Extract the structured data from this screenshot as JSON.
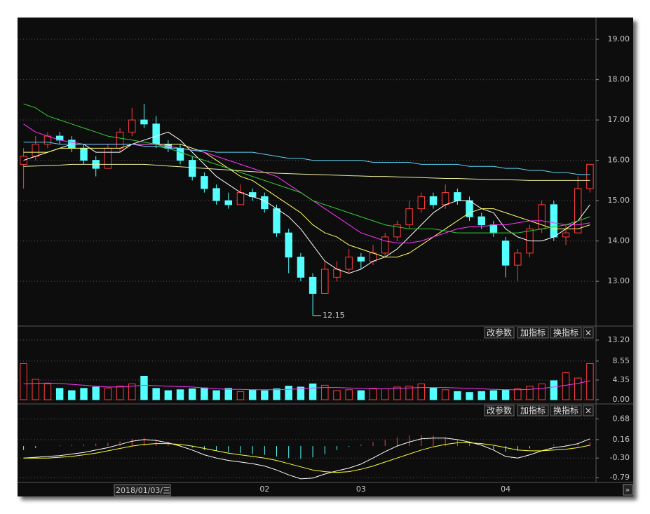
{
  "chart_data": [
    {
      "type": "candlestick",
      "categories": [
        null,
        null,
        null,
        null,
        null,
        null,
        null,
        null,
        null,
        null,
        null,
        null,
        null,
        null,
        null,
        null,
        null,
        null,
        null,
        null,
        "02",
        null,
        null,
        null,
        null,
        null,
        null,
        null,
        "03",
        null,
        null,
        null,
        null,
        null,
        null,
        null,
        null,
        null,
        null,
        null,
        "04",
        null,
        null,
        null,
        null,
        null,
        null,
        null
      ],
      "ohlc": [
        [
          15.9,
          16.3,
          15.3,
          16.1
        ],
        [
          16.1,
          16.6,
          16.0,
          16.4
        ],
        [
          16.4,
          16.7,
          16.3,
          16.6
        ],
        [
          16.6,
          16.7,
          16.4,
          16.5
        ],
        [
          16.5,
          16.6,
          16.2,
          16.3
        ],
        [
          16.3,
          16.4,
          15.9,
          16.0
        ],
        [
          16.0,
          16.1,
          15.6,
          15.8
        ],
        [
          15.8,
          16.4,
          15.8,
          16.3
        ],
        [
          16.3,
          16.8,
          16.2,
          16.7
        ],
        [
          16.7,
          17.3,
          16.6,
          17.0
        ],
        [
          17.0,
          17.4,
          16.8,
          16.9
        ],
        [
          16.9,
          17.1,
          16.3,
          16.4
        ],
        [
          16.4,
          16.5,
          16.2,
          16.3
        ],
        [
          16.3,
          16.4,
          15.9,
          16.0
        ],
        [
          16.0,
          16.1,
          15.5,
          15.6
        ],
        [
          15.6,
          15.7,
          15.2,
          15.3
        ],
        [
          15.3,
          15.4,
          14.9,
          15.0
        ],
        [
          15.0,
          15.2,
          14.8,
          14.9
        ],
        [
          14.9,
          15.4,
          14.9,
          15.2
        ],
        [
          15.2,
          15.3,
          15.0,
          15.1
        ],
        [
          15.1,
          15.2,
          14.7,
          14.8
        ],
        [
          14.8,
          14.9,
          14.1,
          14.2
        ],
        [
          14.2,
          14.3,
          13.2,
          13.6
        ],
        [
          13.6,
          13.7,
          13.0,
          13.1
        ],
        [
          13.1,
          13.2,
          12.15,
          12.7
        ],
        [
          12.7,
          13.5,
          12.7,
          13.3
        ],
        [
          13.1,
          13.5,
          13.0,
          13.3
        ],
        [
          13.3,
          13.8,
          13.2,
          13.6
        ],
        [
          13.6,
          13.7,
          13.3,
          13.5
        ],
        [
          13.5,
          13.9,
          13.4,
          13.7
        ],
        [
          13.7,
          14.2,
          13.6,
          14.1
        ],
        [
          14.1,
          14.5,
          14.0,
          14.4
        ],
        [
          14.4,
          15.0,
          14.3,
          14.8
        ],
        [
          14.8,
          15.2,
          14.7,
          15.1
        ],
        [
          15.1,
          15.2,
          14.8,
          14.9
        ],
        [
          14.9,
          15.4,
          14.8,
          15.2
        ],
        [
          15.2,
          15.3,
          14.9,
          15.0
        ],
        [
          15.0,
          15.1,
          14.5,
          14.6
        ],
        [
          14.6,
          14.7,
          14.3,
          14.4
        ],
        [
          14.4,
          14.5,
          14.1,
          14.2
        ],
        [
          14.0,
          14.1,
          13.1,
          13.4
        ],
        [
          13.4,
          13.8,
          13.0,
          13.7
        ],
        [
          13.7,
          14.4,
          13.6,
          14.3
        ],
        [
          14.3,
          15.0,
          14.2,
          14.9
        ],
        [
          14.9,
          15.0,
          14.0,
          14.1
        ],
        [
          14.1,
          14.4,
          13.9,
          14.2
        ],
        [
          14.2,
          15.6,
          14.2,
          15.3
        ],
        [
          15.3,
          15.9,
          15.2,
          15.9
        ]
      ],
      "up_color": "#ff3c3c",
      "down_color": "#54ffff",
      "series": [
        {
          "color": "#ffffff",
          "values": [
            16.0,
            16.1,
            16.2,
            16.3,
            16.4,
            16.4,
            16.2,
            16.2,
            16.2,
            16.4,
            16.5,
            16.6,
            16.7,
            16.5,
            16.2,
            15.9,
            15.6,
            15.4,
            15.2,
            15.1,
            15.0,
            14.8,
            14.6,
            14.3,
            13.9,
            13.5,
            13.3,
            13.2,
            13.3,
            13.5,
            13.6,
            13.8,
            14.1,
            14.4,
            14.7,
            14.9,
            15.0,
            15.0,
            14.8,
            14.7,
            14.3,
            14.1,
            14.0,
            14.0,
            14.1,
            14.3,
            14.5,
            14.9
          ]
        },
        {
          "color": "#ffff66",
          "values": [
            16.2,
            16.2,
            16.2,
            16.3,
            16.3,
            16.3,
            16.3,
            16.3,
            16.3,
            16.4,
            16.4,
            16.4,
            16.4,
            16.4,
            16.3,
            16.2,
            16.0,
            15.8,
            15.6,
            15.5,
            15.3,
            15.1,
            14.9,
            14.7,
            14.4,
            14.2,
            14.1,
            13.9,
            13.8,
            13.7,
            13.6,
            13.6,
            13.7,
            13.9,
            14.1,
            14.3,
            14.5,
            14.7,
            14.8,
            14.8,
            14.7,
            14.6,
            14.5,
            14.4,
            14.3,
            14.3,
            14.3,
            14.4
          ]
        },
        {
          "color": "#ff33ff",
          "values": [
            16.9,
            16.7,
            16.6,
            16.5,
            16.45,
            16.4,
            16.4,
            16.4,
            16.4,
            16.4,
            16.4,
            16.4,
            16.35,
            16.3,
            16.25,
            16.2,
            16.1,
            16.0,
            15.9,
            15.8,
            15.7,
            15.6,
            15.4,
            15.2,
            15.0,
            14.8,
            14.6,
            14.4,
            14.2,
            14.1,
            14.0,
            13.95,
            13.95,
            14.0,
            14.1,
            14.2,
            14.3,
            14.35,
            14.35,
            14.4,
            14.4,
            14.45,
            14.5,
            14.5,
            14.45,
            14.4,
            14.4,
            14.45
          ]
        },
        {
          "color": "#33cc33",
          "values": [
            17.4,
            17.3,
            17.1,
            17.0,
            16.9,
            16.8,
            16.7,
            16.6,
            16.55,
            16.5,
            16.45,
            16.4,
            16.3,
            16.2,
            16.1,
            16.0,
            15.9,
            15.8,
            15.7,
            15.6,
            15.5,
            15.4,
            15.3,
            15.2,
            15.0,
            14.9,
            14.8,
            14.7,
            14.6,
            14.5,
            14.4,
            14.35,
            14.3,
            14.3,
            14.3,
            14.25,
            14.2,
            14.2,
            14.2,
            14.2,
            14.2,
            14.2,
            14.25,
            14.3,
            14.35,
            14.4,
            14.5,
            14.6
          ]
        },
        {
          "color": "#5ad2f0",
          "values": [
            16.45,
            16.45,
            16.45,
            16.4,
            16.4,
            16.4,
            16.4,
            16.4,
            16.4,
            16.4,
            16.35,
            16.35,
            16.3,
            16.3,
            16.25,
            16.25,
            16.2,
            16.2,
            16.2,
            16.2,
            16.15,
            16.1,
            16.05,
            16.05,
            16.0,
            16.0,
            16.0,
            16.0,
            16.0,
            15.95,
            15.95,
            15.95,
            15.95,
            15.9,
            15.9,
            15.9,
            15.9,
            15.85,
            15.85,
            15.85,
            15.8,
            15.8,
            15.75,
            15.75,
            15.7,
            15.7,
            15.65,
            15.65
          ]
        },
        {
          "color": "#f0f0a0",
          "values": [
            15.85,
            15.86,
            15.87,
            15.88,
            15.9,
            15.9,
            15.9,
            15.9,
            15.9,
            15.9,
            15.9,
            15.88,
            15.86,
            15.84,
            15.82,
            15.8,
            15.78,
            15.76,
            15.74,
            15.72,
            15.7,
            15.68,
            15.67,
            15.66,
            15.65,
            15.64,
            15.63,
            15.62,
            15.61,
            15.6,
            15.6,
            15.59,
            15.58,
            15.57,
            15.56,
            15.55,
            15.55,
            15.54,
            15.53,
            15.52,
            15.52,
            15.51,
            15.5,
            15.5,
            15.5,
            15.5,
            15.5,
            15.5
          ]
        }
      ],
      "ylim": [
        11.89,
        19.54
      ],
      "yticks": [
        {
          "value": 19,
          "label": "19.00"
        },
        {
          "value": 18,
          "label": "18.00"
        },
        {
          "value": 17,
          "label": "17.00"
        },
        {
          "value": 16,
          "label": "16.00"
        },
        {
          "value": 15,
          "label": "15.00"
        },
        {
          "value": 14,
          "label": "14.00"
        },
        {
          "value": 13,
          "label": "13.00"
        }
      ],
      "grid": true
    },
    {
      "type": "bar",
      "values": [
        8.0,
        4.5,
        3.5,
        2.5,
        2.0,
        2.5,
        2.8,
        2.6,
        3.0,
        3.5,
        5.2,
        2.5,
        2.0,
        2.2,
        2.4,
        2.6,
        2.0,
        2.5,
        1.8,
        2.2,
        2.0,
        2.4,
        3.0,
        2.8,
        3.5,
        3.2,
        2.0,
        2.2,
        2.0,
        2.5,
        2.4,
        2.8,
        3.0,
        3.5,
        2.6,
        2.2,
        1.8,
        1.6,
        1.8,
        2.0,
        2.2,
        2.4,
        3.0,
        3.5,
        4.2,
        6.0,
        4.8,
        8.0
      ],
      "series": [
        {
          "color": "#ff33ff",
          "values": [
            3.5,
            3.6,
            3.7,
            3.6,
            3.4,
            3.2,
            3.0,
            2.8,
            2.8,
            3.0,
            3.2,
            3.1,
            3.0,
            2.9,
            2.8,
            2.6,
            2.4,
            2.3,
            2.3,
            2.2,
            2.2,
            2.2,
            2.3,
            2.4,
            2.6,
            2.7,
            2.7,
            2.6,
            2.5,
            2.4,
            2.4,
            2.5,
            2.6,
            2.7,
            2.7,
            2.7,
            2.6,
            2.5,
            2.4,
            2.3,
            2.2,
            2.2,
            2.3,
            2.5,
            2.8,
            3.2,
            3.6,
            4.2
          ]
        }
      ],
      "ylim": [
        -0.78,
        14.44
      ],
      "yticks": [
        {
          "value": 13.2,
          "label": "13.20"
        },
        {
          "value": 8.55,
          "label": "8.55"
        },
        {
          "value": 4.35,
          "label": "4.35"
        },
        {
          "value": 0,
          "label": "0.00"
        }
      ],
      "grid": true
    },
    {
      "type": "macd",
      "values": [
        -0.1,
        -0.05,
        0,
        0.02,
        0.03,
        0.04,
        0.06,
        0.08,
        0.12,
        0.18,
        0.2,
        0.16,
        0.1,
        0.04,
        -0.04,
        -0.1,
        -0.12,
        -0.16,
        -0.18,
        -0.2,
        -0.22,
        -0.26,
        -0.3,
        -0.32,
        -0.28,
        -0.2,
        -0.1,
        -0.02,
        0.04,
        0.1,
        0.16,
        0.22,
        0.26,
        0.28,
        0.26,
        0.22,
        0.16,
        0.08,
        0.0,
        -0.08,
        -0.14,
        -0.12,
        -0.06,
        0.0,
        0.04,
        0.04,
        0.06,
        0.1
      ],
      "series": [
        {
          "color": "#ffffff",
          "values": [
            -0.3,
            -0.28,
            -0.26,
            -0.24,
            -0.2,
            -0.16,
            -0.1,
            -0.04,
            0.04,
            0.12,
            0.16,
            0.14,
            0.08,
            0.0,
            -0.1,
            -0.22,
            -0.3,
            -0.36,
            -0.4,
            -0.44,
            -0.5,
            -0.6,
            -0.72,
            -0.82,
            -0.8,
            -0.7,
            -0.62,
            -0.55,
            -0.45,
            -0.3,
            -0.14,
            0.0,
            0.1,
            0.18,
            0.2,
            0.2,
            0.16,
            0.1,
            0.02,
            -0.1,
            -0.26,
            -0.3,
            -0.22,
            -0.12,
            -0.04,
            0.0,
            0.06,
            0.18
          ]
        },
        {
          "color": "#ffff33",
          "values": [
            -0.3,
            -0.3,
            -0.3,
            -0.28,
            -0.26,
            -0.22,
            -0.18,
            -0.12,
            -0.06,
            0.0,
            0.04,
            0.06,
            0.06,
            0.04,
            0.0,
            -0.06,
            -0.12,
            -0.18,
            -0.22,
            -0.26,
            -0.3,
            -0.36,
            -0.44,
            -0.52,
            -0.6,
            -0.64,
            -0.66,
            -0.64,
            -0.58,
            -0.5,
            -0.4,
            -0.3,
            -0.2,
            -0.1,
            -0.02,
            0.04,
            0.08,
            0.08,
            0.06,
            0.02,
            -0.04,
            -0.1,
            -0.12,
            -0.12,
            -0.1,
            -0.08,
            -0.04,
            0.02
          ]
        }
      ],
      "ylim": [
        -0.91,
        0.86
      ],
      "yticks": [
        {
          "value": 0.68,
          "label": "0.68"
        },
        {
          "value": 0.16,
          "label": "0.16"
        },
        {
          "value": -0.3,
          "label": "-0.30"
        },
        {
          "value": -0.79,
          "label": "-0.79"
        }
      ],
      "grid": true
    }
  ],
  "ui": {
    "buttons": [
      "改参数",
      "加指标",
      "换指标",
      "×"
    ],
    "tooltip": "2018/01/03/三",
    "scroll": "»"
  }
}
